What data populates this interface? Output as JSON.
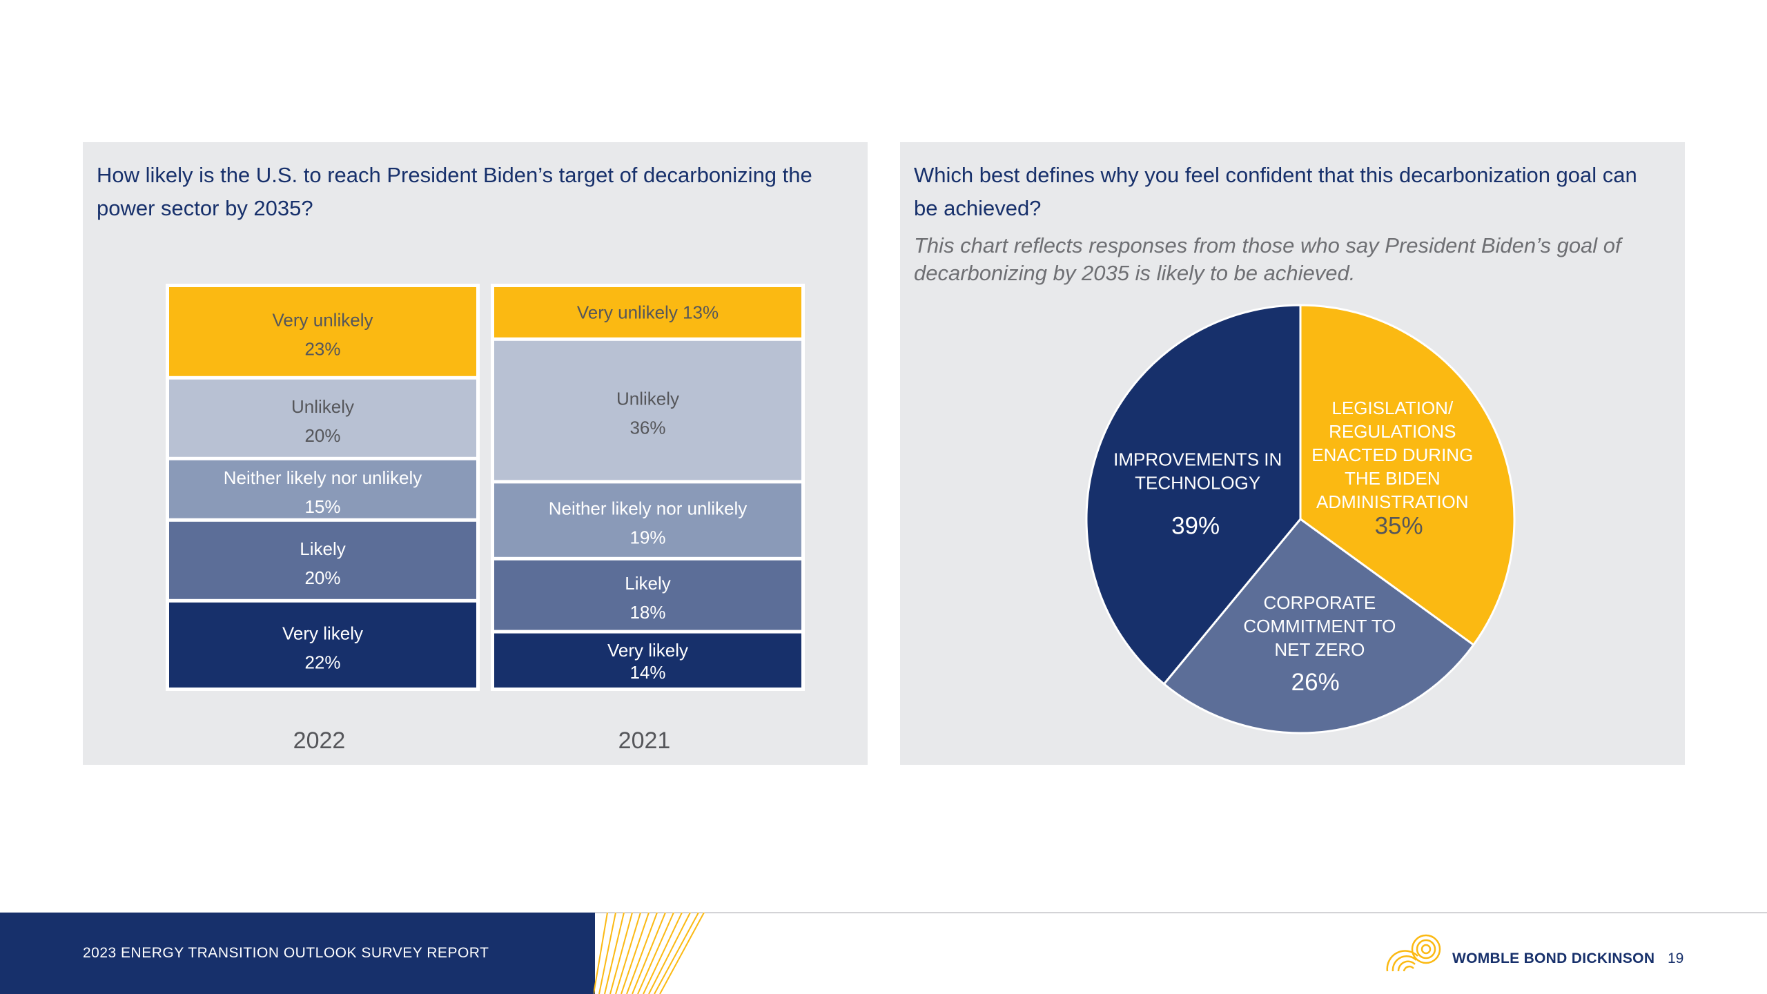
{
  "colors": {
    "very_unlikely": "#fbb912",
    "unlikely": "#b8c1d3",
    "neither": "#8a9ab8",
    "likely": "#5c6e98",
    "very_likely": "#17306b",
    "panel_bg": "#e8e9eb",
    "navy": "#17306b"
  },
  "left_panel": {
    "question": "How likely is the U.S. to reach President Biden’s target of decarbonizing the power sector by 2035?"
  },
  "right_panel": {
    "question": "Which best defines why you feel confident that this decarbonization goal can be achieved?",
    "subtitle": "This chart reflects responses from those who say President Biden’s goal of decarbonizing by 2035 is likely to be achieved."
  },
  "chart_data": [
    {
      "type": "bar",
      "stacked": true,
      "normalized": true,
      "categories": [
        "2022",
        "2021"
      ],
      "series": [
        {
          "name": "Very unlikely",
          "values": [
            23,
            13
          ]
        },
        {
          "name": "Unlikely",
          "values": [
            20,
            36
          ]
        },
        {
          "name": "Neither likely nor unlikely",
          "values": [
            15,
            19
          ]
        },
        {
          "name": "Likely",
          "values": [
            20,
            18
          ]
        },
        {
          "name": "Very likely",
          "values": [
            22,
            14
          ]
        }
      ],
      "value_suffix": "%",
      "title": "How likely is the U.S. to reach President Biden’s target of decarbonizing the power sector by 2035?"
    },
    {
      "type": "pie",
      "slices": [
        {
          "label": "LEGISLATION/ REGULATIONS ENACTED DURING THE BIDEN ADMINISTRATION",
          "lines": [
            "LEGISLATION/",
            "REGULATIONS",
            "ENACTED DURING",
            "THE BIDEN",
            "ADMINISTRATION"
          ],
          "value": 35,
          "display": "35%",
          "color": "#fbb912",
          "text_color": "#ffffff",
          "pct_color": "#55565a"
        },
        {
          "label": "CORPORATE COMMITMENT TO NET ZERO",
          "lines": [
            "CORPORATE",
            "COMMITMENT TO",
            "NET ZERO"
          ],
          "value": 26,
          "display": "26%",
          "color": "#5c6e98",
          "text_color": "#ffffff",
          "pct_color": "#ffffff"
        },
        {
          "label": "IMPROVEMENTS IN TECHNOLOGY",
          "lines": [
            "IMPROVEMENTS IN",
            "TECHNOLOGY"
          ],
          "value": 39,
          "display": "39%",
          "color": "#17306b",
          "text_color": "#ffffff",
          "pct_color": "#ffffff"
        }
      ],
      "title": "Which best defines why you feel confident that this decarbonization goal can be achieved?"
    }
  ],
  "footer": {
    "report_title": "2023 ENERGY TRANSITION OUTLOOK SURVEY REPORT",
    "brand": "WOMBLE BOND DICKINSON",
    "logo_icon": "wbd-rings-logo-icon",
    "page_number": "19"
  }
}
